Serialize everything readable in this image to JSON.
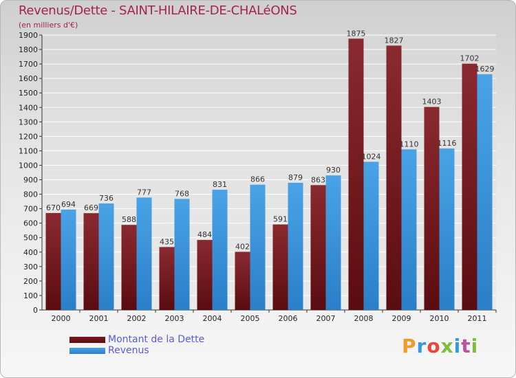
{
  "title": "Revenus/Dette - SAINT-HILAIRE-DE-CHALéONS",
  "subtitle": "(en milliers d'€)",
  "logo": "Proxiti",
  "colors": {
    "debt": "#7a1b20",
    "debt_dark": "#5a0c10",
    "revenue": "#4aa3e6",
    "revenue_dark": "#2a7fc8",
    "grid": "#ffffff",
    "title": "#a32452"
  },
  "chart_data": {
    "type": "bar",
    "title": "Revenus/Dette - SAINT-HILAIRE-DE-CHALéONS",
    "ylabel": "(en milliers d'€)",
    "xlabel": "",
    "categories": [
      "2000",
      "2001",
      "2002",
      "2003",
      "2004",
      "2005",
      "2006",
      "2007",
      "2008",
      "2009",
      "2010",
      "2011"
    ],
    "series": [
      {
        "name": "Montant de la Dette",
        "values": [
          670,
          669,
          588,
          435,
          484,
          402,
          591,
          863,
          1875,
          1827,
          1403,
          1702
        ]
      },
      {
        "name": "Revenus",
        "values": [
          694,
          736,
          777,
          768,
          831,
          866,
          879,
          930,
          1024,
          1110,
          1116,
          1629
        ]
      }
    ],
    "ylim": [
      0,
      1900
    ],
    "ytick_step": 100,
    "grid": true,
    "legend_position": "bottom-left"
  }
}
